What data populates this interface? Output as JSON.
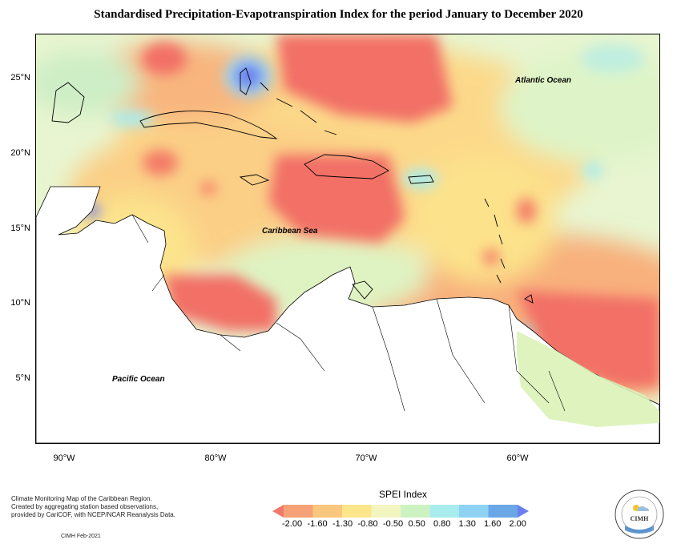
{
  "title": "Standardised Precipitation-Evapotranspiration Index for the period January to December 2020",
  "labels": {
    "atlantic": "Atlantic Ocean",
    "caribbean": "Caribbean Sea",
    "pacific": "Pacific Ocean"
  },
  "lat_ticks": [
    "25°N",
    "20°N",
    "15°N",
    "10°N",
    "5°N"
  ],
  "lon_ticks": [
    "90°W",
    "80°W",
    "70°W",
    "60°W"
  ],
  "footer": {
    "line1": "Climate Monitoring Map of the Caribbean Region.",
    "line2": "Created by aggregating station based observations,",
    "line3": "provided by CariCOF, with NCEP/NCAR Reanalysis Data.",
    "credit": "CIMH Feb-2021"
  },
  "legend": {
    "title": "SPEI Index",
    "values": [
      "-2.00",
      "-1.60",
      "-1.30",
      "-0.80",
      "-0.50",
      "0.50",
      "0.80",
      "1.30",
      "1.60",
      "2.00"
    ],
    "colors": [
      "#f27a6a",
      "#f6a276",
      "#fbc77e",
      "#fce58a",
      "#f3f5c0",
      "#cdf2c2",
      "#a9ecee",
      "#8fd3f4",
      "#6aa7e6",
      "#6b7ff0"
    ]
  },
  "logo": {
    "text": "CIMH"
  }
}
